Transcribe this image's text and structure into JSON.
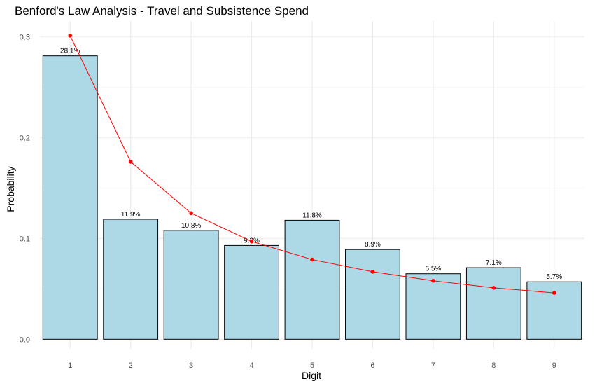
{
  "chart_data": {
    "type": "bar",
    "title": "Benford's Law Analysis - Travel and Subsistence Spend",
    "xlabel": "Digit",
    "ylabel": "Probability",
    "categories": [
      "1",
      "2",
      "3",
      "4",
      "5",
      "6",
      "7",
      "8",
      "9"
    ],
    "series": [
      {
        "type": "bar",
        "values": [
          0.281,
          0.119,
          0.108,
          0.093,
          0.118,
          0.089,
          0.065,
          0.071,
          0.057
        ],
        "labels": [
          "28.1%",
          "11.9%",
          "10.8%",
          "9.3%",
          "11.8%",
          "8.9%",
          "6.5%",
          "7.1%",
          "5.7%"
        ],
        "color": "#add8e6",
        "stroke": "#000000"
      },
      {
        "type": "line",
        "values": [
          0.301,
          0.176,
          0.125,
          0.097,
          0.079,
          0.067,
          0.058,
          0.051,
          0.046
        ],
        "color": "#ff0000"
      }
    ],
    "ylim": [
      -0.0095,
      0.3155
    ],
    "yticks": [
      0.0,
      0.1,
      0.2,
      0.3
    ],
    "ytick_labels": [
      "0.0",
      "0.1",
      "0.2",
      "0.3"
    ],
    "grid": true,
    "legend": "none"
  }
}
